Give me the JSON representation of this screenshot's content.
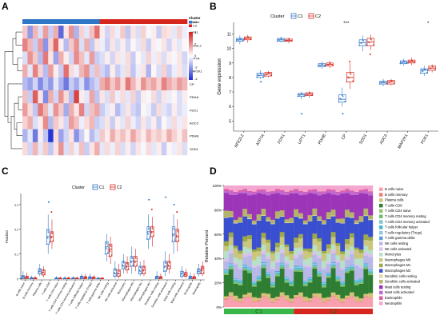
{
  "panels": {
    "A": "A",
    "B": "B",
    "C": "C",
    "D": "D"
  },
  "chart_data": [
    {
      "panel": "A",
      "type": "heatmap",
      "rows": [
        "LIPT1",
        "NFE2L2",
        "ATP7A",
        "MAP2K1",
        "CP",
        "PDHA",
        "FDX1",
        "AOC3",
        "PDHB",
        "SOD1"
      ],
      "column_groups": [
        {
          "name": "C1",
          "count": 15
        },
        {
          "name": "C2",
          "count": 17
        }
      ],
      "annotation_title": "Cluster",
      "legend_ticks": [
        "4",
        "2",
        "0",
        "-2",
        "-4"
      ],
      "legend_groups": [
        "C1",
        "C2"
      ],
      "colors": {
        "C1": "#2f76c8",
        "C2": "#d7261e",
        "high": "#d21f1f",
        "mid": "#ffffff",
        "low": "#1e2fd0"
      },
      "values": [
        [
          0.6,
          -1.2,
          0.8,
          -0.4,
          1.1,
          -0.6,
          0.9,
          -1.8,
          0.3,
          1.2,
          -0.9,
          0.5,
          -0.3,
          0.7,
          1.6,
          0.2,
          -0.5,
          0.4,
          -0.2,
          0.6,
          -0.7,
          0.3,
          -0.4,
          0.5,
          -0.1,
          0.2,
          -0.6,
          0.4,
          0.3,
          -0.3,
          0.5,
          -0.2
        ],
        [
          1.4,
          0.8,
          -0.6,
          1.1,
          -1.3,
          0.5,
          1.7,
          0.2,
          -0.8,
          0.6,
          1.2,
          -0.4,
          0.9,
          -0.7,
          0.3,
          -0.2,
          -0.6,
          0.3,
          -0.4,
          0.2,
          -0.5,
          0.1,
          -0.3,
          0.4,
          -0.6,
          0.2,
          -0.1,
          0.3,
          -0.5,
          0.2,
          -0.3,
          0.1
        ],
        [
          -0.4,
          1.2,
          0.6,
          -0.8,
          1.5,
          0.3,
          -1.1,
          0.9,
          0.2,
          -0.5,
          1.3,
          0.7,
          -0.3,
          1.1,
          -0.6,
          -0.4,
          0.2,
          -0.5,
          0.3,
          -0.2,
          0.4,
          -0.6,
          0.1,
          -0.3,
          0.5,
          -0.2,
          0.3,
          -0.4,
          0.2,
          -0.1,
          0.3,
          -0.5
        ],
        [
          0.9,
          -0.3,
          1.4,
          0.5,
          -0.8,
          1.1,
          0.2,
          -0.6,
          1.6,
          0.4,
          -0.2,
          0.8,
          1.2,
          -0.5,
          0.7,
          -0.5,
          -0.8,
          0.2,
          -0.6,
          -0.3,
          0.4,
          -0.7,
          -0.2,
          0.3,
          -0.9,
          0.1,
          -0.4,
          0.5,
          -0.6,
          -0.2,
          0.3,
          -0.4
        ],
        [
          -0.8,
          -1.1,
          -0.5,
          -1.4,
          -0.7,
          -1.2,
          -0.3,
          -0.9,
          -1.6,
          -0.6,
          -1.0,
          -0.4,
          -1.3,
          -0.8,
          -0.5,
          0.9,
          1.3,
          0.6,
          1.1,
          0.4,
          1.5,
          0.8,
          0.3,
          1.2,
          0.7,
          1.0,
          0.5,
          1.4,
          0.9,
          0.6,
          1.1,
          0.8
        ],
        [
          0.7,
          -0.6,
          1.8,
          0.3,
          -1.4,
          0.9,
          -0.5,
          1.2,
          0.4,
          -0.8,
          2.1,
          0.2,
          -0.3,
          1.0,
          -0.7,
          0.3,
          -0.4,
          0.6,
          -0.2,
          0.4,
          -0.3,
          0.5,
          -0.6,
          0.2,
          -0.1,
          0.4,
          -0.5,
          0.3,
          -0.2,
          0.1,
          -0.4,
          0.2
        ],
        [
          1.1,
          0.4,
          -0.7,
          1.5,
          0.8,
          -0.3,
          1.2,
          0.6,
          -1.0,
          0.9,
          0.3,
          1.4,
          -0.5,
          0.7,
          1.0,
          -0.6,
          -0.3,
          0.2,
          -0.8,
          -0.4,
          0.3,
          -0.5,
          -0.7,
          0.1,
          -0.2,
          -0.6,
          0.4,
          -0.3,
          -0.5,
          0.2,
          -0.4,
          -0.2
        ],
        [
          0.5,
          0.9,
          -0.4,
          0.2,
          1.3,
          -0.8,
          0.6,
          0.3,
          -0.5,
          1.1,
          0.7,
          -0.2,
          0.4,
          0.8,
          -0.6,
          -0.4,
          0.3,
          -0.6,
          0.2,
          -0.3,
          0.5,
          -0.2,
          -0.5,
          0.3,
          -0.4,
          0.2,
          -0.6,
          0.1,
          -0.3,
          0.4,
          -0.2,
          0.3
        ],
        [
          -0.9,
          -0.3,
          -1.6,
          0.2,
          -0.7,
          -2.4,
          0.4,
          -1.1,
          -0.5,
          0.3,
          -1.3,
          -0.6,
          0.1,
          -0.8,
          -0.4,
          0.6,
          0.2,
          0.9,
          0.4,
          0.7,
          0.3,
          1.0,
          0.5,
          0.2,
          0.8,
          0.4,
          0.6,
          0.3,
          0.9,
          0.5,
          0.2,
          0.7
        ],
        [
          0.4,
          -0.5,
          0.8,
          -0.3,
          0.6,
          -0.7,
          0.3,
          1.2,
          -0.4,
          0.5,
          -0.2,
          0.7,
          -0.6,
          0.3,
          0.9,
          -0.3,
          0.4,
          -0.2,
          0.5,
          -0.4,
          0.2,
          -0.5,
          0.3,
          -0.1,
          0.4,
          -0.3,
          0.2,
          -0.6,
          0.1,
          -0.2,
          0.3,
          -0.4
        ]
      ]
    },
    {
      "panel": "B",
      "type": "box",
      "ylabel": "Gene expression",
      "ylim": [
        4.3,
        11.8
      ],
      "yticks": [
        5,
        6,
        7,
        8,
        9,
        10,
        11
      ],
      "legend_title": "Cluster",
      "series_names": [
        "C1",
        "C2"
      ],
      "colors": {
        "C1": "#2f76c8",
        "C2": "#d7261e"
      },
      "categories": [
        "NFE2L2",
        "ATP7A",
        "FDX1",
        "LIPT1",
        "PDHB",
        "CP",
        "SOD1",
        "AOC3",
        "MAP2K1",
        "PDK1"
      ],
      "significance": [
        "",
        "",
        "",
        "",
        "",
        "***",
        "",
        "",
        "",
        "*"
      ],
      "boxes": {
        "C1": [
          [
            10.3,
            10.5,
            10.6,
            10.7,
            10.9
          ],
          [
            7.9,
            8.0,
            8.15,
            8.3,
            8.5
          ],
          [
            10.4,
            10.5,
            10.6,
            10.7,
            10.8
          ],
          [
            6.5,
            6.7,
            6.8,
            6.9,
            7.0
          ],
          [
            8.6,
            8.75,
            8.85,
            8.95,
            9.1
          ],
          [
            6.0,
            6.3,
            6.5,
            6.8,
            7.3
          ],
          [
            9.8,
            10.2,
            10.4,
            10.6,
            10.9
          ],
          [
            7.4,
            7.55,
            7.65,
            7.75,
            7.9
          ],
          [
            8.8,
            8.95,
            9.05,
            9.15,
            9.3
          ],
          [
            8.1,
            8.3,
            8.5,
            8.6,
            8.8
          ]
        ],
        "C2": [
          [
            10.4,
            10.6,
            10.7,
            10.8,
            10.95
          ],
          [
            8.0,
            8.1,
            8.25,
            8.35,
            8.45
          ],
          [
            10.35,
            10.5,
            10.55,
            10.65,
            10.75
          ],
          [
            6.6,
            6.75,
            6.85,
            6.95,
            7.05
          ],
          [
            8.65,
            8.8,
            8.9,
            9.0,
            9.15
          ],
          [
            7.2,
            7.7,
            8.0,
            8.35,
            9.0
          ],
          [
            9.9,
            10.2,
            10.45,
            10.7,
            10.95
          ],
          [
            7.45,
            7.55,
            7.7,
            7.8,
            7.9
          ],
          [
            8.85,
            9.0,
            9.1,
            9.2,
            9.35
          ],
          [
            8.35,
            8.5,
            8.65,
            8.8,
            8.9
          ]
        ]
      },
      "outliers": {
        "C1": [
          [
            3,
            5.5
          ],
          [
            5,
            5.5
          ],
          [
            1,
            7.7
          ]
        ],
        "C2": [
          [
            5,
            9.1
          ],
          [
            6,
            9.6
          ]
        ]
      }
    },
    {
      "panel": "C",
      "type": "box",
      "ylabel": "Fraction",
      "ylim": [
        -0.005,
        0.345
      ],
      "yticks": [
        0.0,
        0.1,
        0.2,
        0.3
      ],
      "legend_title": "Cluster",
      "series_names": [
        "C1",
        "C2"
      ],
      "colors": {
        "C1": "#2f76c8",
        "C2": "#d7261e"
      },
      "categories": [
        "B cells naive",
        "B cells memory",
        "Plasma cells",
        "T cells CD8",
        "T cells CD4 naive",
        "T cells CD4 memory resting",
        "T cells CD4 memory activated",
        "T cells follicular helper",
        "T cells regulatory (Tregs)",
        "T cells gamma delta",
        "NK cells resting",
        "NK cells activated",
        "Monocytes",
        "Macrophages M0",
        "Macrophages M1",
        "Macrophages M2",
        "Dendritic cells resting",
        "Dendritic cells activated",
        "Mast cells resting",
        "Mast cells activated",
        "Eosinophils",
        "Neutrophils"
      ],
      "boxes": {
        "C1": [
          [
            0,
            0,
            0.005,
            0.012,
            0.03
          ],
          [
            0,
            0,
            0,
            0.004,
            0.012
          ],
          [
            0.01,
            0.02,
            0.03,
            0.04,
            0.06
          ],
          [
            0.1,
            0.14,
            0.17,
            0.2,
            0.26
          ],
          [
            0,
            0,
            0,
            0.003,
            0.01
          ],
          [
            0,
            0,
            0,
            0.002,
            0.01
          ],
          [
            0,
            0,
            0,
            0.003,
            0.01
          ],
          [
            0,
            0,
            0.004,
            0.01,
            0.02
          ],
          [
            0,
            0,
            0.003,
            0.008,
            0.02
          ],
          [
            0,
            0,
            0,
            0.002,
            0.006
          ],
          [
            0.07,
            0.1,
            0.13,
            0.15,
            0.18
          ],
          [
            0,
            0.01,
            0.02,
            0.04,
            0.07
          ],
          [
            0.02,
            0.04,
            0.05,
            0.07,
            0.1
          ],
          [
            0.02,
            0.05,
            0.07,
            0.09,
            0.13
          ],
          [
            0.01,
            0.02,
            0.03,
            0.05,
            0.07
          ],
          [
            0.12,
            0.16,
            0.19,
            0.21,
            0.26
          ],
          [
            0,
            0,
            0.005,
            0.01,
            0.03
          ],
          [
            0.01,
            0.03,
            0.05,
            0.07,
            0.11
          ],
          [
            0.1,
            0.15,
            0.18,
            0.21,
            0.26
          ],
          [
            0,
            0.01,
            0.02,
            0.03,
            0.05
          ],
          [
            0,
            0,
            0.004,
            0.01,
            0.025
          ],
          [
            0.01,
            0.02,
            0.03,
            0.04,
            0.06
          ]
        ],
        "C2": [
          [
            0,
            0,
            0.004,
            0.01,
            0.025
          ],
          [
            0,
            0,
            0,
            0.003,
            0.01
          ],
          [
            0.005,
            0.015,
            0.025,
            0.035,
            0.05
          ],
          [
            0.12,
            0.15,
            0.17,
            0.19,
            0.24
          ],
          [
            0,
            0,
            0,
            0.002,
            0.008
          ],
          [
            0,
            0,
            0,
            0.002,
            0.008
          ],
          [
            0,
            0,
            0,
            0.002,
            0.008
          ],
          [
            0,
            0,
            0.003,
            0.008,
            0.018
          ],
          [
            0,
            0,
            0.002,
            0.006,
            0.015
          ],
          [
            0,
            0,
            0,
            0.002,
            0.005
          ],
          [
            0.06,
            0.09,
            0.12,
            0.14,
            0.17
          ],
          [
            0,
            0.01,
            0.02,
            0.035,
            0.06
          ],
          [
            0.02,
            0.035,
            0.05,
            0.065,
            0.09
          ],
          [
            0.03,
            0.05,
            0.07,
            0.09,
            0.12
          ],
          [
            0.01,
            0.02,
            0.035,
            0.05,
            0.075
          ],
          [
            0.13,
            0.17,
            0.19,
            0.21,
            0.25
          ],
          [
            0,
            0,
            0.004,
            0.008,
            0.02
          ],
          [
            0.02,
            0.04,
            0.05,
            0.07,
            0.1
          ],
          [
            0.11,
            0.15,
            0.17,
            0.2,
            0.24
          ],
          [
            0,
            0.01,
            0.015,
            0.025,
            0.04
          ],
          [
            0,
            0,
            0.003,
            0.008,
            0.02
          ],
          [
            0.01,
            0.02,
            0.04,
            0.05,
            0.07
          ]
        ]
      },
      "outliers": {
        "C1": [
          [
            3,
            0.31
          ],
          [
            15,
            0.32
          ],
          [
            17,
            0.33
          ],
          [
            18,
            0.3
          ]
        ],
        "C2": [
          [
            3,
            0.27
          ],
          [
            15,
            0.28
          ],
          [
            18,
            0.27
          ]
        ]
      }
    },
    {
      "panel": "D",
      "type": "stacked_bar",
      "ylabel": "Relative Percent",
      "yticks": [
        "0%",
        "20%",
        "40%",
        "60%",
        "80%",
        "100%"
      ],
      "groups": [
        {
          "name": "C1",
          "count": 15,
          "color": "#3ab54a"
        },
        {
          "name": "C2",
          "count": 17,
          "color": "#d7261e"
        }
      ],
      "categories": [
        "B cells naive",
        "B cells memory",
        "Plasma cells",
        "T cells CD8",
        "T cells CD4 naive",
        "T cells CD4 memory resting",
        "T cells CD4 memory activated",
        "T cells follicular helper",
        "T cells regulatory (Tregs)",
        "T cells gamma delta",
        "NK cells resting",
        "NK cells activated",
        "Monocytes",
        "Macrophages M0",
        "Macrophages M1",
        "Macrophages M2",
        "Dendritic cells resting",
        "Dendritic cells activated",
        "Mast cells resting",
        "Mast cells activated",
        "Eosinophils",
        "Neutrophils"
      ],
      "colors": [
        "#f9a0b0",
        "#ef7f7f",
        "#d6c07a",
        "#2e7d32",
        "#98c46f",
        "#6fbf6a",
        "#7ec6c7",
        "#40b9c9",
        "#8cc9e8",
        "#5aa0d8",
        "#b8b8e8",
        "#d9c2f0",
        "#b8e0c8",
        "#c9c77e",
        "#9da84a",
        "#3a4fd0",
        "#e0d7a8",
        "#b3b36a",
        "#9c35b8",
        "#c06ad0",
        "#e05aa0",
        "#f3a6cf"
      ],
      "base_fractions": [
        0.06,
        0.005,
        0.03,
        0.14,
        0.005,
        0.01,
        0.005,
        0.01,
        0.01,
        0.005,
        0.09,
        0.02,
        0.05,
        0.06,
        0.03,
        0.18,
        0.005,
        0.04,
        0.17,
        0.02,
        0.01,
        0.04
      ]
    }
  ]
}
